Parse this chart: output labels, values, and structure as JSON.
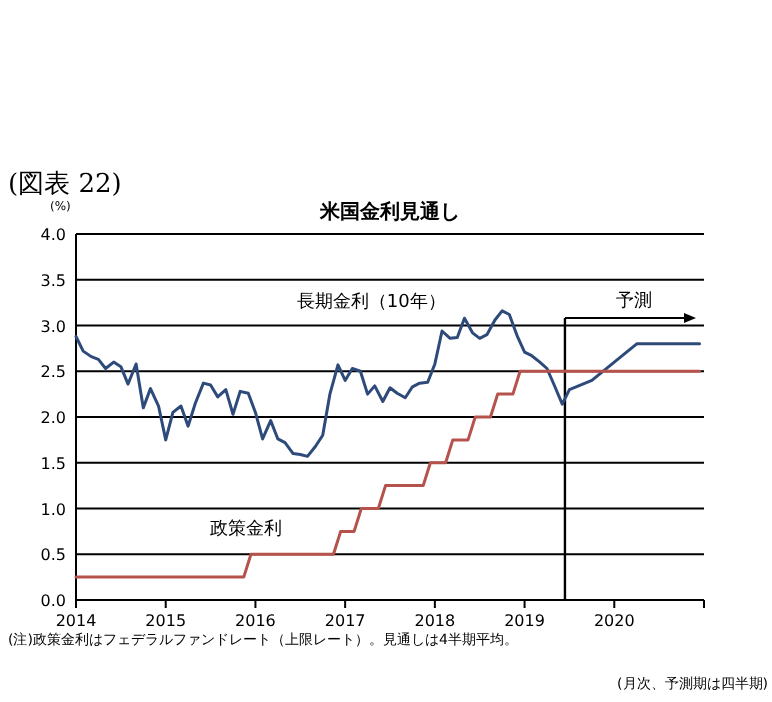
{
  "chart_data": {
    "type": "line",
    "title": "米国金利見通し",
    "ylabel": "(%)",
    "annotations": [
      "(図表 22)",
      "(注)政策金利はフェデラルファンドレート（上限レート）。見通しは4半期平均。",
      "(月次、予測期は四半期)"
    ],
    "xlim": [
      2014,
      2021
    ],
    "xticks": [
      2014,
      2015,
      2016,
      2017,
      2018,
      2019,
      2020,
      {
        "value": 2021,
        "label": null
      }
    ],
    "ylim": [
      0,
      4
    ],
    "yticks": [
      {
        "value": 0,
        "label": "0.0"
      },
      {
        "value": 0.5,
        "label": "0.5"
      },
      {
        "value": 1,
        "label": "1.0"
      },
      {
        "value": 1.5,
        "label": "1.5"
      },
      {
        "value": 2,
        "label": "2.0"
      },
      {
        "value": 2.5,
        "label": "2.5"
      },
      {
        "value": 3,
        "label": "3.0"
      },
      {
        "value": 3.5,
        "label": "3.5"
      },
      {
        "value": 4,
        "label": "4.0"
      }
    ],
    "grid": "y",
    "marker": "none",
    "line_style": "solid",
    "ref_lines": [
      {
        "axis": "x",
        "value": 2019.45,
        "label": "予測",
        "color": "#000000"
      }
    ],
    "series": [
      {
        "name": "長期金利（10年）",
        "color": "#2e4a7a",
        "x": [
          2014.0,
          2014.08,
          2014.17,
          2014.25,
          2014.33,
          2014.42,
          2014.5,
          2014.58,
          2014.67,
          2014.75,
          2014.83,
          2014.92,
          2015.0,
          2015.08,
          2015.17,
          2015.25,
          2015.33,
          2015.42,
          2015.5,
          2015.58,
          2015.67,
          2015.75,
          2015.83,
          2015.92,
          2016.0,
          2016.08,
          2016.17,
          2016.25,
          2016.33,
          2016.42,
          2016.5,
          2016.58,
          2016.67,
          2016.75,
          2016.83,
          2016.92,
          2017.0,
          2017.08,
          2017.17,
          2017.25,
          2017.33,
          2017.42,
          2017.5,
          2017.58,
          2017.67,
          2017.75,
          2017.83,
          2017.92,
          2018.0,
          2018.08,
          2018.17,
          2018.25,
          2018.33,
          2018.42,
          2018.5,
          2018.58,
          2018.67,
          2018.75,
          2018.83,
          2018.92,
          2019.0,
          2019.08,
          2019.17,
          2019.25,
          2019.33,
          2019.42,
          2019.5,
          2019.75,
          2020.0,
          2020.25,
          2020.95
        ],
        "values": [
          2.88,
          2.72,
          2.66,
          2.63,
          2.53,
          2.6,
          2.55,
          2.36,
          2.58,
          2.1,
          2.31,
          2.12,
          1.75,
          2.05,
          2.12,
          1.9,
          2.15,
          2.37,
          2.35,
          2.22,
          2.3,
          2.03,
          2.28,
          2.26,
          2.05,
          1.76,
          1.96,
          1.76,
          1.72,
          1.6,
          1.59,
          1.57,
          1.68,
          1.8,
          2.25,
          2.57,
          2.4,
          2.53,
          2.5,
          2.25,
          2.34,
          2.17,
          2.32,
          2.26,
          2.21,
          2.33,
          2.37,
          2.38,
          2.58,
          2.94,
          2.86,
          2.87,
          3.08,
          2.92,
          2.86,
          2.9,
          3.06,
          3.16,
          3.12,
          2.88,
          2.71,
          2.67,
          2.6,
          2.53,
          2.35,
          2.14,
          2.3,
          2.4,
          2.6,
          2.8,
          2.8
        ]
      },
      {
        "name": "政策金利",
        "color": "#b5524c",
        "x": [
          2014.0,
          2015.87,
          2015.95,
          2016.87,
          2016.95,
          2017.1,
          2017.18,
          2017.37,
          2017.45,
          2017.87,
          2017.95,
          2018.12,
          2018.2,
          2018.37,
          2018.45,
          2018.62,
          2018.7,
          2018.87,
          2018.95,
          2020.95
        ],
        "values": [
          0.25,
          0.25,
          0.5,
          0.5,
          0.75,
          0.75,
          1.0,
          1.0,
          1.25,
          1.25,
          1.5,
          1.5,
          1.75,
          1.75,
          2.0,
          2.0,
          2.25,
          2.25,
          2.5,
          2.5
        ]
      }
    ]
  }
}
